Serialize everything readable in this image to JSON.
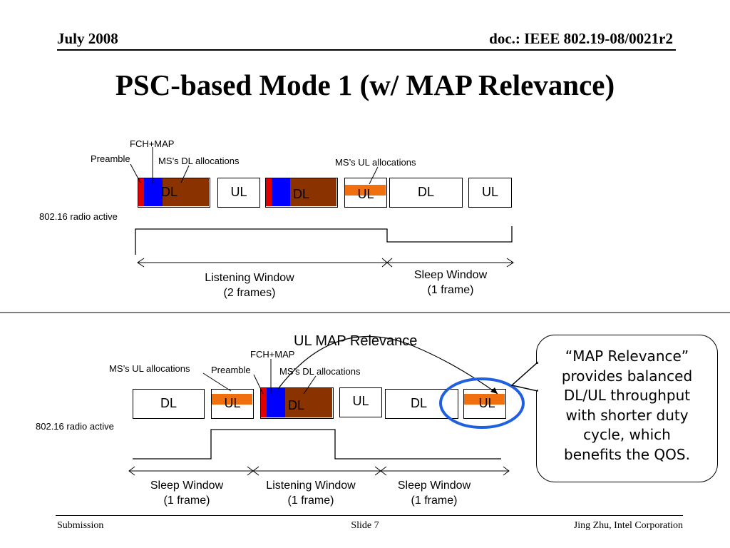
{
  "header": {
    "date": "July 2008",
    "doc_id": "doc.: IEEE 802.19-08/0021r2"
  },
  "title": "PSC-based Mode 1 (w/ MAP Relevance)",
  "diagram_top": {
    "labels": {
      "fch_map": "FCH+MAP",
      "preamble": "Preamble",
      "dl_alloc": "MS’s DL allocations",
      "ul_alloc": "MS’s UL allocations",
      "radio": "802.16 radio active",
      "listen_line1": "Listening Window",
      "listen_line2": "(2 frames)",
      "sleep_line1": "Sleep Window",
      "sleep_line2": "(1 frame)"
    },
    "frames": [
      "DL",
      "UL",
      "DL",
      "UL",
      "DL",
      "UL"
    ]
  },
  "diagram_bottom": {
    "heading": "UL MAP Relevance",
    "labels": {
      "ul_alloc": "MS’s UL allocations",
      "preamble": "Preamble",
      "fch_map": "FCH+MAP",
      "dl_alloc": "MS’s DL allocations",
      "radio": "802.16 radio active",
      "sleep1_line1": "Sleep Window",
      "sleep1_line2": "(1 frame)",
      "listen_line1": "Listening Window",
      "listen_line2": "(1 frame)",
      "sleep2_line1": "Sleep Window",
      "sleep2_line2": "(1 frame)"
    },
    "frames": [
      "DL",
      "UL",
      "DL",
      "UL",
      "DL",
      "UL"
    ]
  },
  "callout": {
    "lines": [
      "“MAP Relevance”",
      "provides balanced",
      "DL/UL throughput",
      "with shorter duty",
      "cycle, which",
      "benefits the QOS."
    ]
  },
  "colors": {
    "preamble": "#e00000",
    "map": "#0000ff",
    "dl_alloc": "#8b3300",
    "ul_alloc": "#f07010",
    "highlight": "#2060e0"
  },
  "footer": {
    "left": "Submission",
    "center": "Slide 7",
    "right": "Jing Zhu, Intel Corporation"
  }
}
